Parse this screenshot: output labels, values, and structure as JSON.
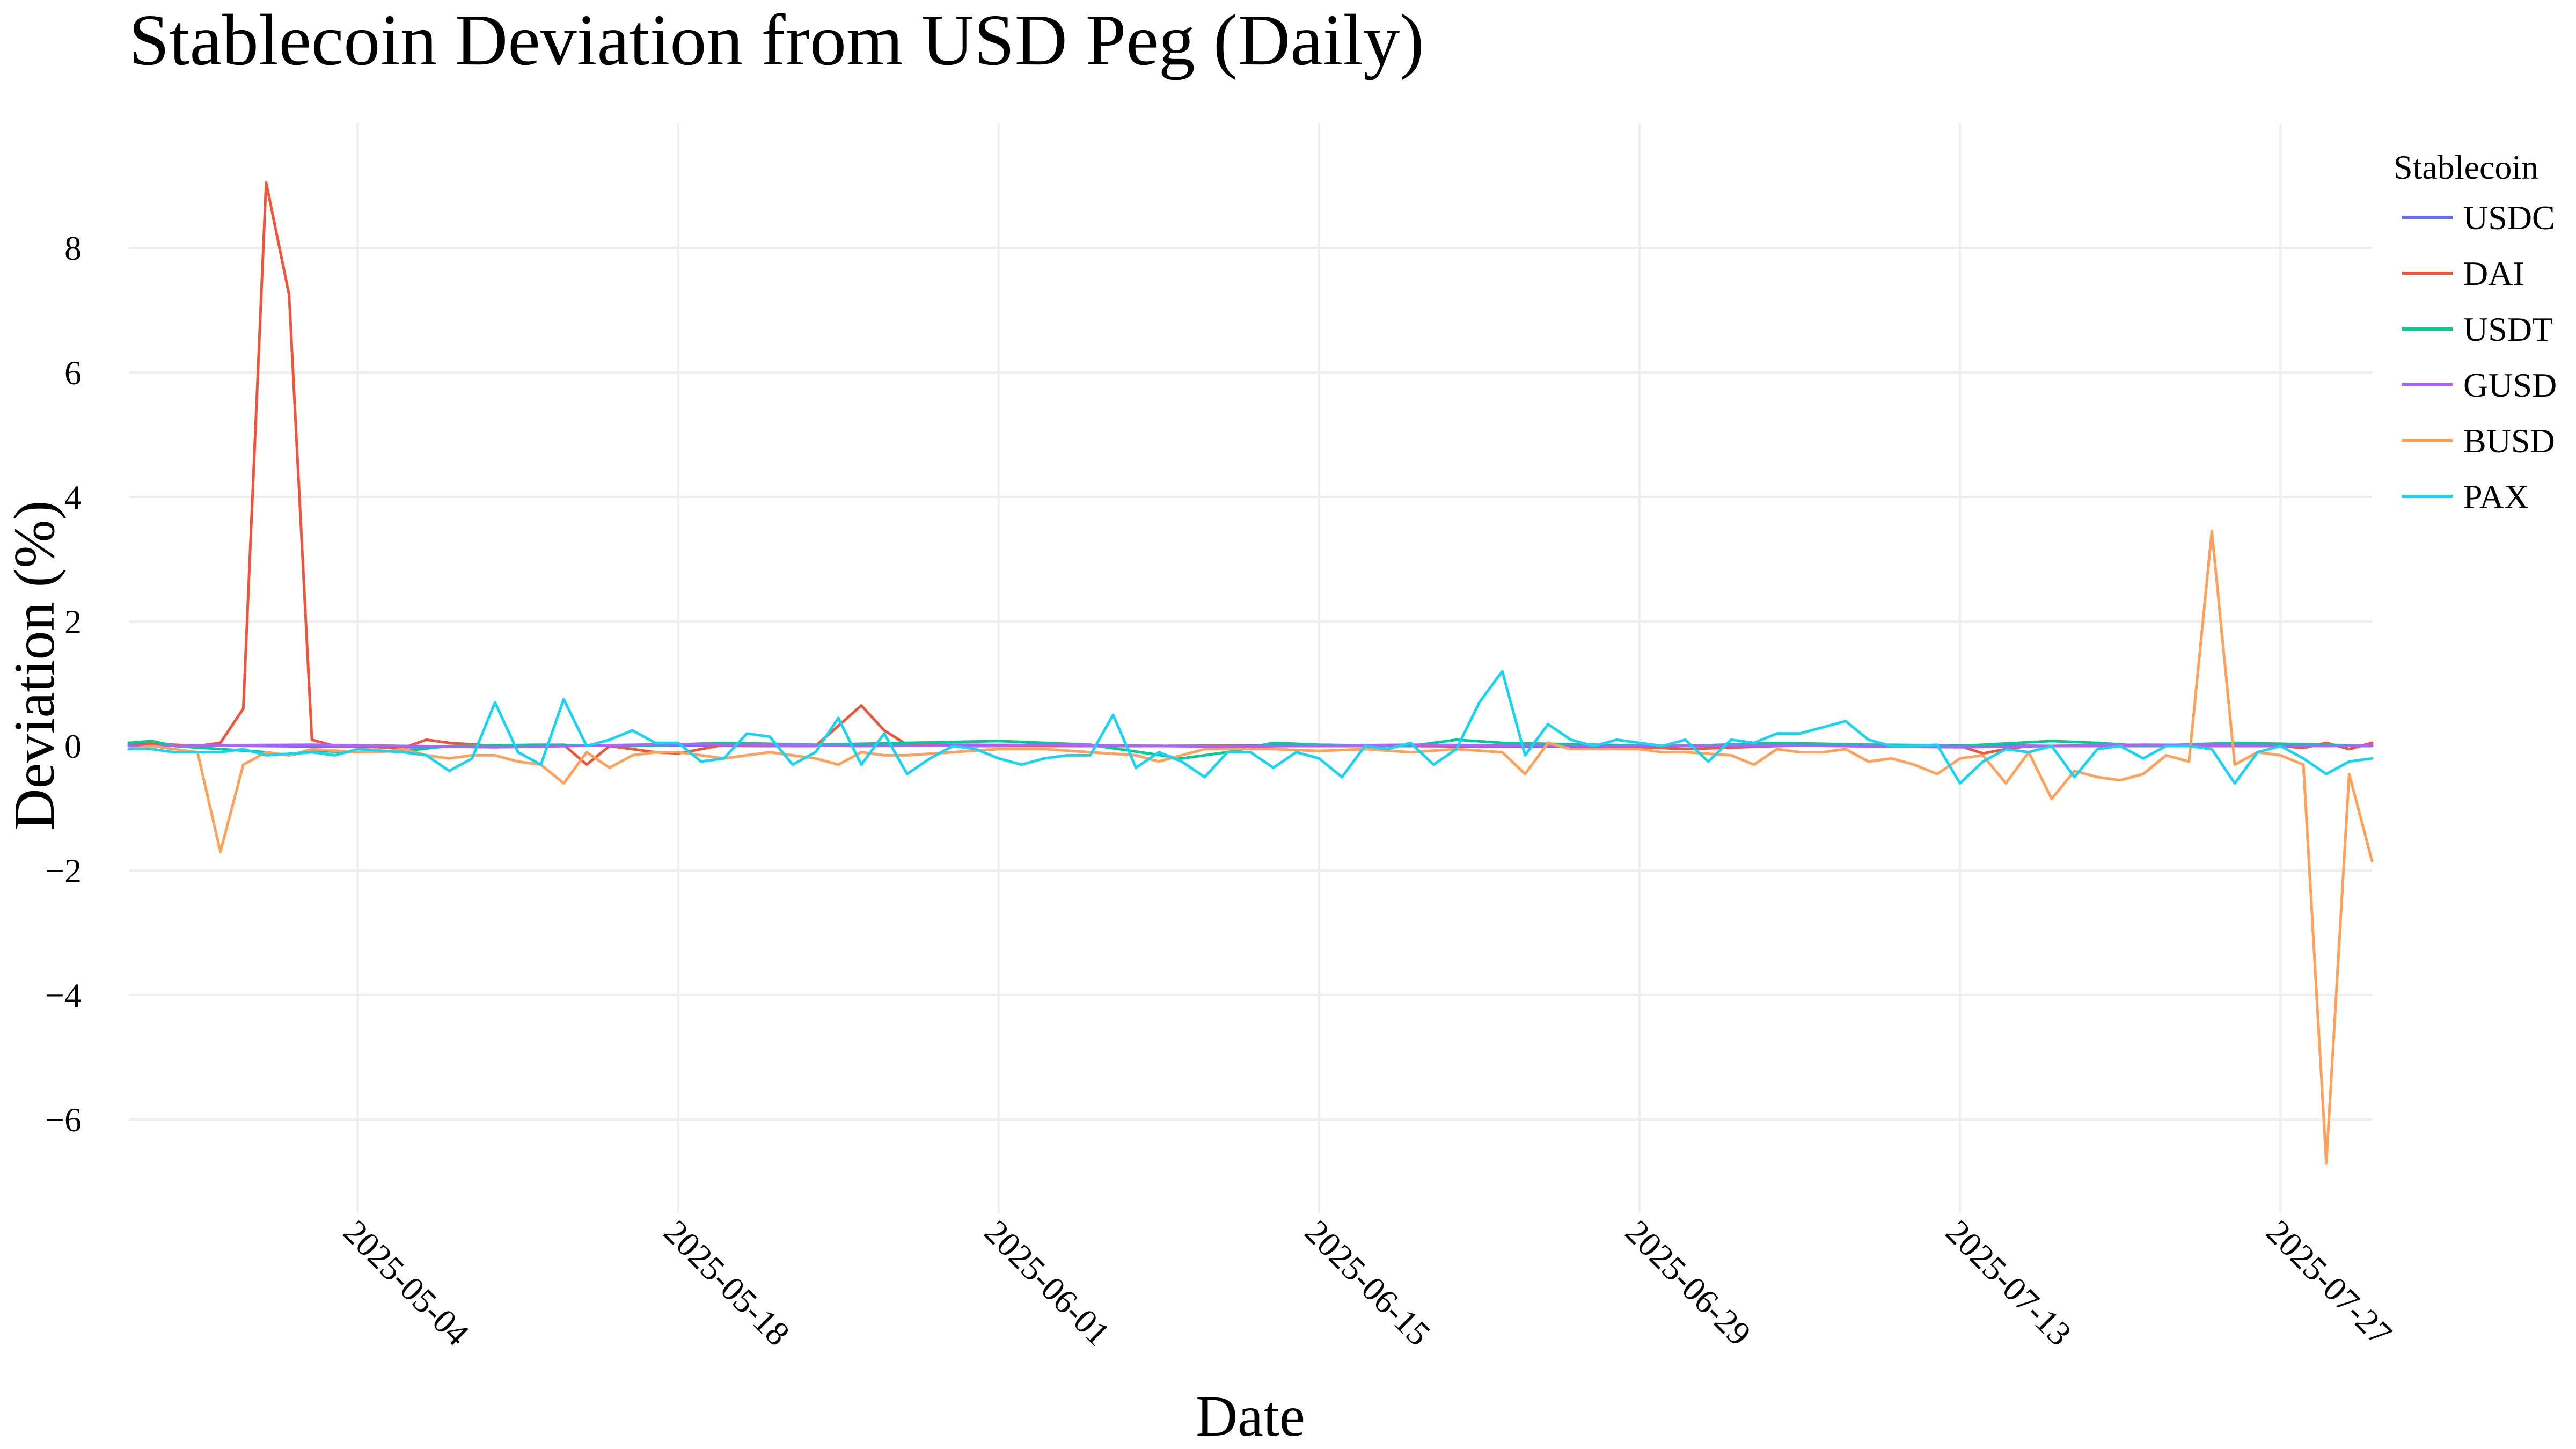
{
  "chart_data": {
    "type": "line",
    "title": "Stablecoin Deviation from USD Peg (Daily)",
    "xlabel": "Date",
    "ylabel": "Deviation (%)",
    "legend_title": "Stablecoin",
    "legend_position": "top-right",
    "grid": true,
    "x_start": "2025-04-24",
    "x_end": "2025-07-31",
    "xlim": [
      0,
      98
    ],
    "ylim": [
      -7.5,
      10.0
    ],
    "y_ticks": [
      -6,
      -4,
      -2,
      0,
      2,
      4,
      6,
      8
    ],
    "y_tick_labels": [
      "−6",
      "−4",
      "−2",
      "0",
      "2",
      "4",
      "6",
      "8"
    ],
    "x_ticks": [
      10,
      24,
      38,
      52,
      66,
      80,
      94
    ],
    "x_tick_labels": [
      "2025-05-04",
      "2025-05-18",
      "2025-06-01",
      "2025-06-15",
      "2025-06-29",
      "2025-07-13",
      "2025-07-27"
    ],
    "series": [
      {
        "name": "USDC",
        "color": "#636efa",
        "points": [
          [
            0,
            0.02
          ],
          [
            6,
            0.0
          ],
          [
            12,
            -0.02
          ],
          [
            20,
            0.01
          ],
          [
            28,
            0.0
          ],
          [
            36,
            0.02
          ],
          [
            44,
            0.0
          ],
          [
            52,
            0.01
          ],
          [
            60,
            -0.01
          ],
          [
            68,
            0.0
          ],
          [
            76,
            0.02
          ],
          [
            84,
            0.0
          ],
          [
            92,
            0.01
          ],
          [
            98,
            0.0
          ]
        ]
      },
      {
        "name": "DAI",
        "color": "#ef553b",
        "points": [
          [
            0,
            0.05
          ],
          [
            2,
            0.02
          ],
          [
            3,
            0.0
          ],
          [
            4,
            0.05
          ],
          [
            5,
            0.6
          ],
          [
            6,
            9.05
          ],
          [
            7,
            7.25
          ],
          [
            8,
            0.1
          ],
          [
            9,
            0.0
          ],
          [
            12,
            -0.03
          ],
          [
            13,
            0.1
          ],
          [
            14,
            0.05
          ],
          [
            16,
            0.0
          ],
          [
            19,
            0.02
          ],
          [
            20,
            -0.3
          ],
          [
            21,
            0.0
          ],
          [
            23,
            -0.1
          ],
          [
            24,
            -0.12
          ],
          [
            26,
            0.02
          ],
          [
            29,
            0.0
          ],
          [
            30,
            0.0
          ],
          [
            32,
            0.65
          ],
          [
            33,
            0.25
          ],
          [
            34,
            0.02
          ],
          [
            37,
            0.0
          ],
          [
            40,
            0.0
          ],
          [
            44,
            0.0
          ],
          [
            48,
            0.0
          ],
          [
            52,
            0.0
          ],
          [
            56,
            0.0
          ],
          [
            60,
            0.0
          ],
          [
            64,
            0.02
          ],
          [
            68,
            -0.05
          ],
          [
            72,
            0.0
          ],
          [
            76,
            0.02
          ],
          [
            80,
            0.0
          ],
          [
            81,
            -0.12
          ],
          [
            82,
            -0.05
          ],
          [
            83,
            0.0
          ],
          [
            86,
            0.0
          ],
          [
            90,
            0.0
          ],
          [
            94,
            0.0
          ],
          [
            95,
            -0.03
          ],
          [
            96,
            0.05
          ],
          [
            97,
            -0.05
          ],
          [
            98,
            0.05
          ]
        ]
      },
      {
        "name": "USDT",
        "color": "#00cc96",
        "points": [
          [
            0,
            0.05
          ],
          [
            1,
            0.08
          ],
          [
            2,
            0.0
          ],
          [
            4,
            -0.05
          ],
          [
            6,
            -0.1
          ],
          [
            7,
            -0.15
          ],
          [
            8,
            -0.08
          ],
          [
            10,
            -0.1
          ],
          [
            12,
            -0.08
          ],
          [
            14,
            0.0
          ],
          [
            18,
            0.02
          ],
          [
            22,
            0.0
          ],
          [
            26,
            0.05
          ],
          [
            30,
            0.02
          ],
          [
            34,
            0.05
          ],
          [
            38,
            0.08
          ],
          [
            42,
            0.02
          ],
          [
            46,
            -0.2
          ],
          [
            48,
            -0.1
          ],
          [
            50,
            0.05
          ],
          [
            52,
            0.02
          ],
          [
            56,
            0.0
          ],
          [
            58,
            0.1
          ],
          [
            60,
            0.05
          ],
          [
            64,
            0.02
          ],
          [
            68,
            0.0
          ],
          [
            72,
            0.05
          ],
          [
            76,
            0.02
          ],
          [
            80,
            0.0
          ],
          [
            84,
            0.08
          ],
          [
            86,
            0.05
          ],
          [
            88,
            0.0
          ],
          [
            92,
            0.05
          ],
          [
            96,
            0.02
          ],
          [
            98,
            0.0
          ]
        ]
      },
      {
        "name": "GUSD",
        "color": "#ab63fa",
        "points": [
          [
            0,
            0.0
          ],
          [
            8,
            0.02
          ],
          [
            16,
            -0.02
          ],
          [
            24,
            0.03
          ],
          [
            32,
            0.0
          ],
          [
            40,
            0.02
          ],
          [
            48,
            -0.01
          ],
          [
            56,
            0.02
          ],
          [
            64,
            0.0
          ],
          [
            72,
            0.01
          ],
          [
            80,
            -0.02
          ],
          [
            88,
            0.02
          ],
          [
            96,
            0.0
          ],
          [
            98,
            0.01
          ]
        ]
      },
      {
        "name": "BUSD",
        "color": "#ffa15a",
        "points": [
          [
            0,
            -0.05
          ],
          [
            1,
            0.0
          ],
          [
            2,
            -0.05
          ],
          [
            3,
            -0.1
          ],
          [
            4,
            -1.7
          ],
          [
            5,
            -0.3
          ],
          [
            6,
            -0.1
          ],
          [
            7,
            -0.15
          ],
          [
            8,
            -0.05
          ],
          [
            10,
            -0.1
          ],
          [
            11,
            -0.1
          ],
          [
            12,
            -0.05
          ],
          [
            13,
            -0.15
          ],
          [
            14,
            -0.2
          ],
          [
            15,
            -0.15
          ],
          [
            16,
            -0.15
          ],
          [
            17,
            -0.25
          ],
          [
            18,
            -0.3
          ],
          [
            19,
            -0.6
          ],
          [
            20,
            -0.1
          ],
          [
            21,
            -0.35
          ],
          [
            22,
            -0.15
          ],
          [
            23,
            -0.1
          ],
          [
            24,
            -0.1
          ],
          [
            25,
            -0.15
          ],
          [
            26,
            -0.2
          ],
          [
            27,
            -0.15
          ],
          [
            28,
            -0.1
          ],
          [
            29,
            -0.15
          ],
          [
            30,
            -0.2
          ],
          [
            31,
            -0.3
          ],
          [
            32,
            -0.1
          ],
          [
            33,
            -0.15
          ],
          [
            34,
            -0.15
          ],
          [
            36,
            -0.1
          ],
          [
            38,
            -0.05
          ],
          [
            40,
            -0.05
          ],
          [
            42,
            -0.1
          ],
          [
            44,
            -0.15
          ],
          [
            45,
            -0.25
          ],
          [
            46,
            -0.15
          ],
          [
            47,
            -0.05
          ],
          [
            48,
            -0.05
          ],
          [
            50,
            -0.05
          ],
          [
            52,
            -0.08
          ],
          [
            54,
            -0.05
          ],
          [
            56,
            -0.1
          ],
          [
            58,
            -0.05
          ],
          [
            60,
            -0.1
          ],
          [
            61,
            -0.45
          ],
          [
            62,
            0.05
          ],
          [
            63,
            -0.05
          ],
          [
            64,
            -0.05
          ],
          [
            66,
            -0.05
          ],
          [
            67,
            -0.1
          ],
          [
            68,
            -0.1
          ],
          [
            70,
            -0.15
          ],
          [
            71,
            -0.3
          ],
          [
            72,
            -0.05
          ],
          [
            73,
            -0.1
          ],
          [
            74,
            -0.1
          ],
          [
            75,
            -0.05
          ],
          [
            76,
            -0.25
          ],
          [
            77,
            -0.2
          ],
          [
            78,
            -0.3
          ],
          [
            79,
            -0.45
          ],
          [
            80,
            -0.2
          ],
          [
            81,
            -0.15
          ],
          [
            82,
            -0.6
          ],
          [
            83,
            -0.1
          ],
          [
            84,
            -0.85
          ],
          [
            85,
            -0.4
          ],
          [
            86,
            -0.5
          ],
          [
            87,
            -0.55
          ],
          [
            88,
            -0.45
          ],
          [
            89,
            -0.15
          ],
          [
            90,
            -0.25
          ],
          [
            91,
            3.45
          ],
          [
            92,
            -0.3
          ],
          [
            93,
            -0.1
          ],
          [
            94,
            -0.15
          ],
          [
            95,
            -0.3
          ],
          [
            96,
            -6.7
          ],
          [
            97,
            -0.45
          ],
          [
            98,
            -1.85
          ]
        ]
      },
      {
        "name": "PAX",
        "color": "#19d3f3",
        "points": [
          [
            0,
            -0.05
          ],
          [
            1,
            -0.05
          ],
          [
            2,
            -0.1
          ],
          [
            4,
            -0.1
          ],
          [
            5,
            -0.05
          ],
          [
            6,
            -0.15
          ],
          [
            8,
            -0.1
          ],
          [
            9,
            -0.15
          ],
          [
            10,
            -0.05
          ],
          [
            12,
            -0.1
          ],
          [
            13,
            -0.15
          ],
          [
            14,
            -0.4
          ],
          [
            15,
            -0.2
          ],
          [
            16,
            0.7
          ],
          [
            17,
            -0.1
          ],
          [
            18,
            -0.3
          ],
          [
            19,
            0.75
          ],
          [
            20,
            0.0
          ],
          [
            21,
            0.1
          ],
          [
            22,
            0.25
          ],
          [
            23,
            0.05
          ],
          [
            24,
            0.05
          ],
          [
            25,
            -0.25
          ],
          [
            26,
            -0.2
          ],
          [
            27,
            0.2
          ],
          [
            28,
            0.15
          ],
          [
            29,
            -0.3
          ],
          [
            30,
            -0.1
          ],
          [
            31,
            0.45
          ],
          [
            32,
            -0.3
          ],
          [
            33,
            0.2
          ],
          [
            34,
            -0.45
          ],
          [
            35,
            -0.2
          ],
          [
            36,
            0.0
          ],
          [
            37,
            -0.05
          ],
          [
            38,
            -0.2
          ],
          [
            39,
            -0.3
          ],
          [
            40,
            -0.2
          ],
          [
            41,
            -0.15
          ],
          [
            42,
            -0.15
          ],
          [
            43,
            0.5
          ],
          [
            44,
            -0.35
          ],
          [
            45,
            -0.1
          ],
          [
            46,
            -0.25
          ],
          [
            47,
            -0.5
          ],
          [
            48,
            -0.1
          ],
          [
            49,
            -0.1
          ],
          [
            50,
            -0.35
          ],
          [
            51,
            -0.1
          ],
          [
            52,
            -0.2
          ],
          [
            53,
            -0.5
          ],
          [
            54,
            0.0
          ],
          [
            55,
            -0.05
          ],
          [
            56,
            0.05
          ],
          [
            57,
            -0.3
          ],
          [
            58,
            -0.05
          ],
          [
            59,
            0.7
          ],
          [
            60,
            1.2
          ],
          [
            61,
            -0.15
          ],
          [
            62,
            0.35
          ],
          [
            63,
            0.1
          ],
          [
            64,
            0.0
          ],
          [
            65,
            0.1
          ],
          [
            66,
            0.05
          ],
          [
            67,
            0.0
          ],
          [
            68,
            0.1
          ],
          [
            69,
            -0.25
          ],
          [
            70,
            0.1
          ],
          [
            71,
            0.05
          ],
          [
            72,
            0.2
          ],
          [
            73,
            0.2
          ],
          [
            74,
            0.3
          ],
          [
            75,
            0.4
          ],
          [
            76,
            0.1
          ],
          [
            77,
            0.0
          ],
          [
            78,
            0.0
          ],
          [
            79,
            0.02
          ],
          [
            80,
            -0.6
          ],
          [
            81,
            -0.25
          ],
          [
            82,
            -0.05
          ],
          [
            83,
            -0.1
          ],
          [
            84,
            0.0
          ],
          [
            85,
            -0.5
          ],
          [
            86,
            -0.05
          ],
          [
            87,
            0.0
          ],
          [
            88,
            -0.2
          ],
          [
            89,
            0.0
          ],
          [
            90,
            0.0
          ],
          [
            91,
            -0.05
          ],
          [
            92,
            -0.6
          ],
          [
            93,
            -0.1
          ],
          [
            94,
            0.0
          ],
          [
            95,
            -0.2
          ],
          [
            96,
            -0.45
          ],
          [
            97,
            -0.25
          ],
          [
            98,
            -0.2
          ]
        ]
      }
    ]
  }
}
